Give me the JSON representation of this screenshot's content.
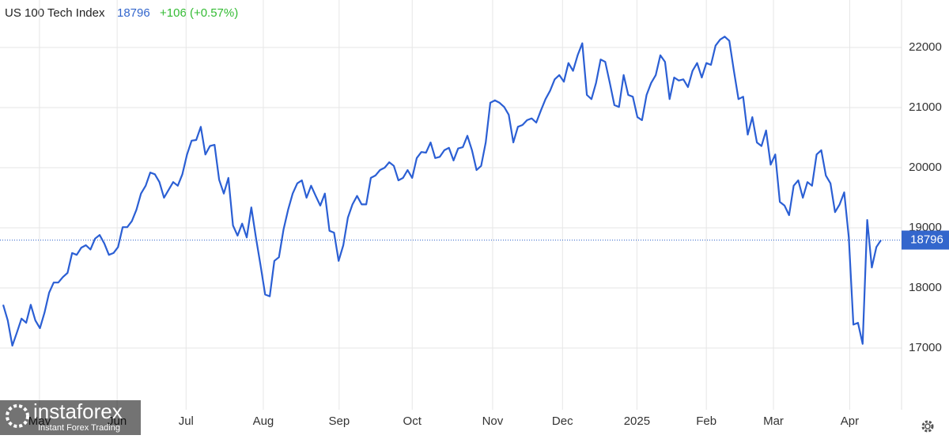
{
  "chart_data": {
    "type": "line",
    "title": "US 100 Tech Index",
    "price": 18796,
    "change": "+106 (+0.57%)",
    "price_color": "#3366cc",
    "change_color": "#33bb33",
    "watermark": {
      "brand": "instaforex",
      "tagline": "Instant Forex Trading"
    },
    "series": [
      {
        "name": "US 100 Tech Index",
        "color": "#2b5fd4",
        "values": [
          17720,
          17460,
          17040,
          17260,
          17490,
          17420,
          17720,
          17460,
          17330,
          17590,
          17920,
          18090,
          18090,
          18180,
          18250,
          18580,
          18550,
          18670,
          18710,
          18640,
          18820,
          18880,
          18740,
          18550,
          18580,
          18680,
          19010,
          19010,
          19110,
          19300,
          19570,
          19700,
          19920,
          19890,
          19760,
          19500,
          19630,
          19760,
          19700,
          19890,
          20220,
          20450,
          20460,
          20680,
          20220,
          20360,
          20380,
          19800,
          19570,
          19830,
          19040,
          18870,
          19070,
          18840,
          19340,
          18840,
          18380,
          17890,
          17860,
          18450,
          18510,
          18970,
          19300,
          19570,
          19740,
          19790,
          19500,
          19700,
          19530,
          19370,
          19570,
          18950,
          18920,
          18450,
          18710,
          19170,
          19390,
          19530,
          19390,
          19390,
          19830,
          19870,
          19960,
          20000,
          20090,
          20030,
          19790,
          19830,
          19960,
          19830,
          20160,
          20260,
          20250,
          20420,
          20160,
          20180,
          20290,
          20330,
          20120,
          20320,
          20340,
          20530,
          20290,
          19960,
          20030,
          20420,
          21080,
          21120,
          21080,
          21010,
          20880,
          20420,
          20680,
          20710,
          20790,
          20820,
          20750,
          20950,
          21140,
          21280,
          21470,
          21540,
          21430,
          21740,
          21610,
          21870,
          22070,
          21210,
          21140,
          21410,
          21800,
          21760,
          21410,
          21040,
          21010,
          21540,
          21210,
          21180,
          20840,
          20790,
          21210,
          21410,
          21540,
          21870,
          21760,
          21140,
          21500,
          21450,
          21470,
          21340,
          21610,
          21740,
          21500,
          21740,
          21710,
          22030,
          22130,
          22180,
          22110,
          21610,
          21140,
          21180,
          20550,
          20840,
          20420,
          20360,
          20620,
          20050,
          20220,
          19430,
          19370,
          19210,
          19700,
          19790,
          19500,
          19760,
          19700,
          20220,
          20290,
          19870,
          19740,
          19260,
          19390,
          19590,
          18840,
          17390,
          17420,
          17070,
          19130,
          18340,
          18680,
          18796
        ]
      }
    ],
    "xlim": [
      0,
      191
    ],
    "xticks": [
      {
        "value": 7.9,
        "label": "May"
      },
      {
        "value": 24.8,
        "label": "Jun"
      },
      {
        "value": 39.8,
        "label": "Jul"
      },
      {
        "value": 56.6,
        "label": "Aug"
      },
      {
        "value": 73.1,
        "label": "Sep"
      },
      {
        "value": 89,
        "label": "Oct"
      },
      {
        "value": 106.5,
        "label": "Nov"
      },
      {
        "value": 121.7,
        "label": "Dec"
      },
      {
        "value": 137.9,
        "label": "2025"
      },
      {
        "value": 153,
        "label": "Feb"
      },
      {
        "value": 167.6,
        "label": "Mar"
      },
      {
        "value": 184.2,
        "label": "Apr"
      }
    ],
    "ylim": [
      15974,
      22789
    ],
    "yticks": [
      17000,
      18000,
      19000,
      20000,
      21000,
      22000
    ],
    "grid": true
  }
}
